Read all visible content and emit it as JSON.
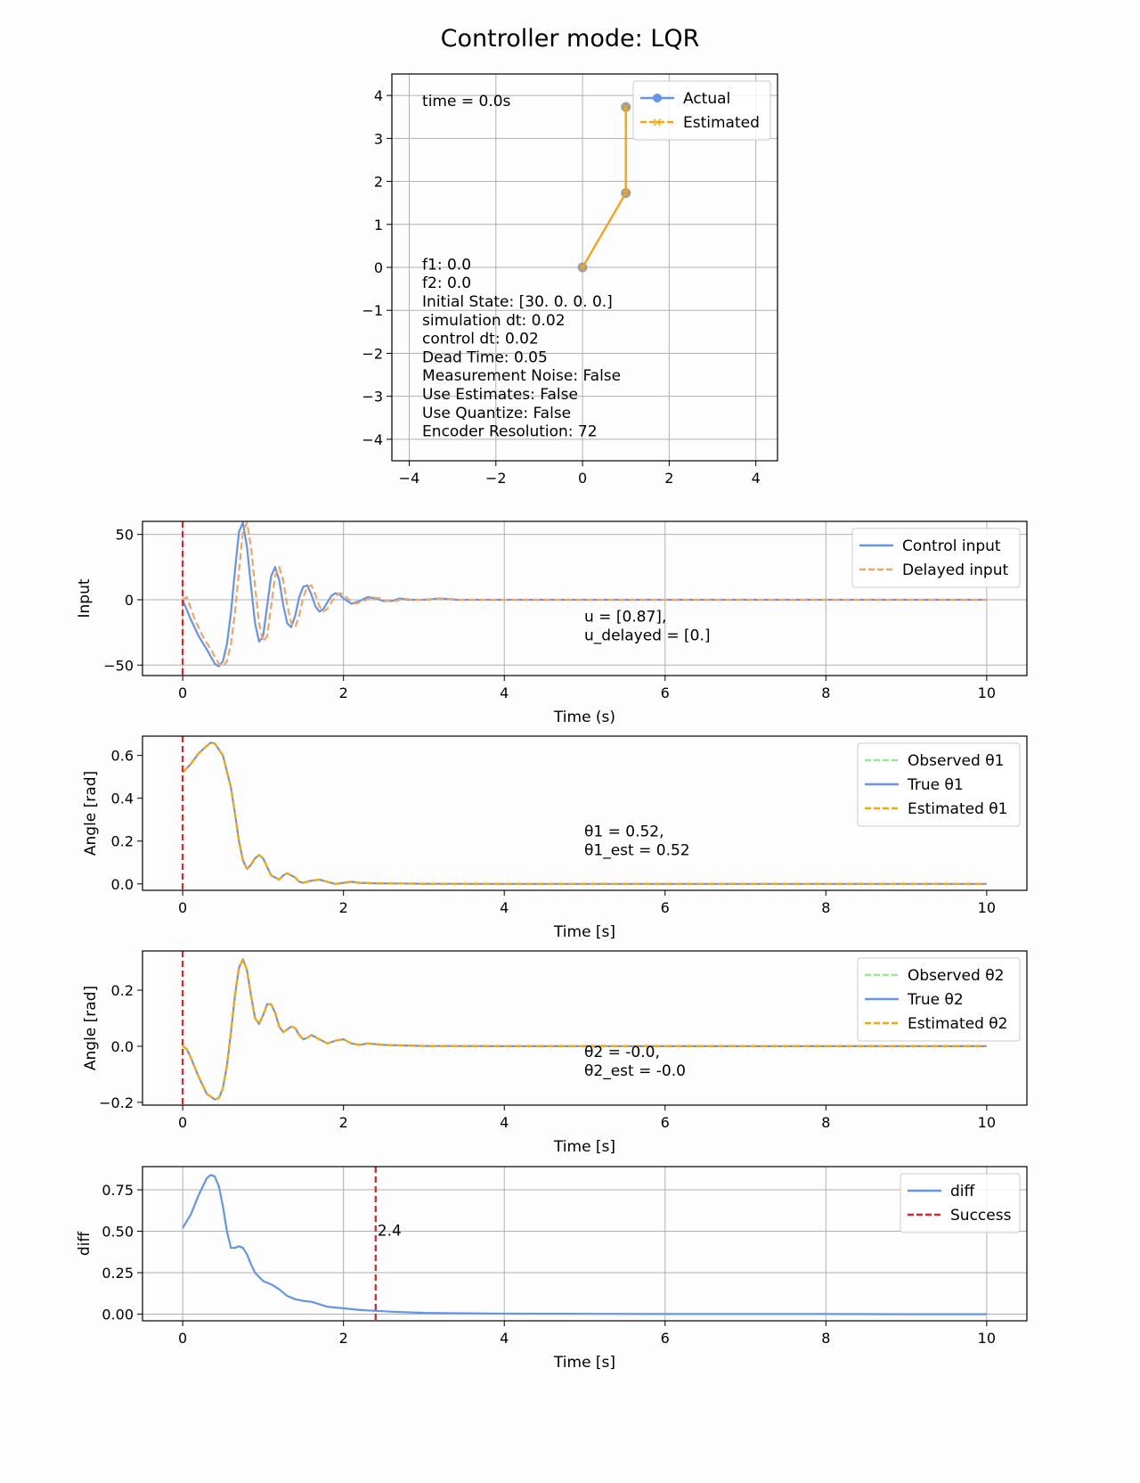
{
  "title": "Controller mode: LQR",
  "chart_data": [
    {
      "type": "line",
      "id": "pendulum",
      "xlim": [
        -4.4,
        4.5
      ],
      "ylim": [
        -4.5,
        4.5
      ],
      "xticks": [
        -4,
        -2,
        0,
        2,
        4
      ],
      "yticks": [
        -4,
        -3,
        -2,
        -1,
        0,
        1,
        2,
        3,
        4
      ],
      "grid": true,
      "legend_position": "top-right",
      "time_text": "time = 0.0s",
      "info_lines": [
        "f1: 0.0",
        "f2: 0.0",
        "Initial State: [30.  0.  0.  0.]",
        "simulation dt: 0.02",
        "control dt: 0.02",
        "Dead Time: 0.05",
        "Measurement Noise: False",
        "Use Estimates: False",
        "Use Quantize: False",
        "Encoder Resolution: 72"
      ],
      "series": [
        {
          "name": "Actual",
          "color": "#6495ed",
          "x": [
            0,
            1.0,
            1.0
          ],
          "y": [
            0,
            1.73,
            3.73
          ]
        },
        {
          "name": "Estimated",
          "color": "#ffa500",
          "x": [
            0,
            1.0,
            1.0
          ],
          "y": [
            0,
            1.73,
            3.73
          ]
        }
      ]
    },
    {
      "type": "line",
      "id": "input",
      "xlabel": "Time (s)",
      "ylabel": "Input",
      "xlim": [
        -0.5,
        10.5
      ],
      "ylim": [
        -58,
        60
      ],
      "xticks": [
        0,
        2,
        4,
        6,
        8,
        10
      ],
      "yticks": [
        -50,
        0,
        50
      ],
      "grid": true,
      "legend_position": "top-right",
      "annotation": [
        "u = [0.87],",
        "u_delayed = [0.]"
      ],
      "vline": {
        "x": 0,
        "color": "#d62728"
      },
      "series": [
        {
          "name": "Control input",
          "color": "#6495ed",
          "x": [
            0,
            0.1,
            0.2,
            0.3,
            0.4,
            0.45,
            0.5,
            0.55,
            0.6,
            0.65,
            0.7,
            0.75,
            0.8,
            0.85,
            0.9,
            0.95,
            1.0,
            1.05,
            1.1,
            1.15,
            1.2,
            1.25,
            1.3,
            1.35,
            1.4,
            1.45,
            1.5,
            1.55,
            1.6,
            1.65,
            1.7,
            1.75,
            1.8,
            1.85,
            1.9,
            1.95,
            2.0,
            2.1,
            2.2,
            2.3,
            2.4,
            2.5,
            2.6,
            2.7,
            2.8,
            2.9,
            3.0,
            3.2,
            3.4,
            3.6,
            4,
            5,
            6,
            7,
            8,
            9,
            10
          ],
          "y": [
            0,
            -15,
            -28,
            -38,
            -49,
            -51,
            -47,
            -34,
            -10,
            22,
            52,
            59,
            40,
            10,
            -18,
            -32,
            -28,
            -5,
            18,
            25,
            15,
            -4,
            -18,
            -21,
            -12,
            2,
            10,
            11,
            4,
            -5,
            -9,
            -7,
            -2,
            3,
            5,
            4,
            1,
            -3,
            -1,
            2,
            1,
            -1,
            -1,
            1,
            0,
            0,
            0,
            1,
            0,
            0,
            0,
            0,
            0,
            0,
            0,
            0,
            0
          ]
        },
        {
          "name": "Delayed input",
          "color": "#f4a460",
          "x": [
            0,
            0.05,
            0.15,
            0.25,
            0.35,
            0.45,
            0.5,
            0.55,
            0.6,
            0.65,
            0.7,
            0.75,
            0.8,
            0.85,
            0.9,
            0.95,
            1.0,
            1.05,
            1.1,
            1.15,
            1.2,
            1.25,
            1.3,
            1.35,
            1.4,
            1.45,
            1.5,
            1.55,
            1.6,
            1.65,
            1.7,
            1.75,
            1.8,
            1.85,
            1.9,
            1.95,
            2.0,
            2.05,
            2.15,
            2.25,
            2.35,
            2.45,
            2.55,
            2.65,
            2.75,
            2.85,
            2.95,
            3.05,
            3.25,
            3.45,
            3.65,
            4,
            5,
            6,
            7,
            8,
            9,
            10
          ],
          "y": [
            0,
            2,
            -15,
            -28,
            -38,
            -49,
            -51,
            -47,
            -34,
            -10,
            22,
            52,
            59,
            40,
            10,
            -18,
            -32,
            -28,
            -5,
            18,
            25,
            15,
            -4,
            -18,
            -21,
            -12,
            2,
            10,
            11,
            4,
            -5,
            -9,
            -7,
            -2,
            3,
            5,
            4,
            1,
            -3,
            -1,
            2,
            1,
            -1,
            -1,
            1,
            0,
            0,
            0,
            1,
            0,
            0,
            0,
            0,
            0,
            0,
            0,
            0,
            0
          ]
        }
      ]
    },
    {
      "type": "line",
      "id": "theta1",
      "xlabel": "Time [s]",
      "ylabel": "Angle [rad]",
      "xlim": [
        -0.5,
        10.5
      ],
      "ylim": [
        -0.03,
        0.69
      ],
      "xticks": [
        0,
        2,
        4,
        6,
        8,
        10
      ],
      "yticks": [
        0.0,
        0.2,
        0.4,
        0.6
      ],
      "grid": false,
      "legend_position": "top-right",
      "annotation": [
        "θ1 = 0.52,",
        "θ1_est = 0.52"
      ],
      "vline": {
        "x": 0,
        "color": "#d62728"
      },
      "series": [
        {
          "name": "Observed θ1",
          "color": "#90ee90",
          "x": [
            0,
            0.1,
            0.2,
            0.3,
            0.35,
            0.4,
            0.5,
            0.6,
            0.65,
            0.7,
            0.75,
            0.8,
            0.85,
            0.9,
            0.95,
            1.0,
            1.05,
            1.1,
            1.2,
            1.25,
            1.3,
            1.35,
            1.4,
            1.45,
            1.5,
            1.6,
            1.7,
            1.8,
            1.9,
            2.0,
            2.1,
            2.2,
            2.4,
            2.6,
            3,
            4,
            5,
            6,
            7,
            8,
            9,
            10
          ],
          "y": [
            0.52,
            0.56,
            0.61,
            0.645,
            0.66,
            0.655,
            0.6,
            0.45,
            0.33,
            0.2,
            0.11,
            0.07,
            0.09,
            0.12,
            0.135,
            0.12,
            0.08,
            0.04,
            0.02,
            0.04,
            0.05,
            0.04,
            0.03,
            0.01,
            0.005,
            0.015,
            0.02,
            0.01,
            0.0,
            0.005,
            0.01,
            0.005,
            0.003,
            0.002,
            0.001,
            0,
            0,
            0,
            0,
            0,
            0,
            0
          ]
        },
        {
          "name": "True θ1",
          "color": "#6495ed",
          "x": [
            0,
            0.1,
            0.2,
            0.3,
            0.35,
            0.4,
            0.5,
            0.6,
            0.65,
            0.7,
            0.75,
            0.8,
            0.85,
            0.9,
            0.95,
            1.0,
            1.05,
            1.1,
            1.2,
            1.25,
            1.3,
            1.35,
            1.4,
            1.45,
            1.5,
            1.6,
            1.7,
            1.8,
            1.9,
            2.0,
            2.1,
            2.2,
            2.4,
            2.6,
            3,
            4,
            5,
            6,
            7,
            8,
            9,
            10
          ],
          "y": [
            0.52,
            0.56,
            0.61,
            0.645,
            0.66,
            0.655,
            0.6,
            0.45,
            0.33,
            0.2,
            0.11,
            0.07,
            0.09,
            0.12,
            0.135,
            0.12,
            0.08,
            0.04,
            0.02,
            0.04,
            0.05,
            0.04,
            0.03,
            0.01,
            0.005,
            0.015,
            0.02,
            0.01,
            0.0,
            0.005,
            0.01,
            0.005,
            0.003,
            0.002,
            0.001,
            0,
            0,
            0,
            0,
            0,
            0,
            0
          ]
        },
        {
          "name": "Estimated θ1",
          "color": "#ffa500",
          "x": [
            0,
            0.1,
            0.2,
            0.3,
            0.35,
            0.4,
            0.5,
            0.6,
            0.65,
            0.7,
            0.75,
            0.8,
            0.85,
            0.9,
            0.95,
            1.0,
            1.05,
            1.1,
            1.2,
            1.25,
            1.3,
            1.35,
            1.4,
            1.45,
            1.5,
            1.6,
            1.7,
            1.8,
            1.9,
            2.0,
            2.1,
            2.2,
            2.4,
            2.6,
            3,
            4,
            5,
            6,
            7,
            8,
            9,
            10
          ],
          "y": [
            0.52,
            0.56,
            0.61,
            0.645,
            0.66,
            0.655,
            0.6,
            0.45,
            0.33,
            0.2,
            0.11,
            0.07,
            0.09,
            0.12,
            0.135,
            0.12,
            0.08,
            0.04,
            0.02,
            0.04,
            0.05,
            0.04,
            0.03,
            0.01,
            0.005,
            0.015,
            0.02,
            0.01,
            0.0,
            0.005,
            0.01,
            0.005,
            0.003,
            0.002,
            0.001,
            0,
            0,
            0,
            0,
            0,
            0,
            0
          ]
        }
      ]
    },
    {
      "type": "line",
      "id": "theta2",
      "xlabel": "Time [s]",
      "ylabel": "Angle [rad]",
      "xlim": [
        -0.5,
        10.5
      ],
      "ylim": [
        -0.21,
        0.34
      ],
      "xticks": [
        0,
        2,
        4,
        6,
        8,
        10
      ],
      "yticks": [
        -0.2,
        0.0,
        0.2
      ],
      "grid": false,
      "legend_position": "top-right",
      "annotation": [
        "θ2 = -0.0,",
        "θ2_est = -0.0"
      ],
      "vline": {
        "x": 0,
        "color": "#d62728"
      },
      "series": [
        {
          "name": "Observed θ2",
          "color": "#90ee90",
          "x": [
            0,
            0.05,
            0.1,
            0.2,
            0.3,
            0.4,
            0.45,
            0.5,
            0.55,
            0.6,
            0.65,
            0.7,
            0.75,
            0.8,
            0.85,
            0.9,
            0.95,
            1.0,
            1.05,
            1.1,
            1.15,
            1.2,
            1.25,
            1.3,
            1.35,
            1.4,
            1.45,
            1.5,
            1.55,
            1.6,
            1.7,
            1.8,
            1.9,
            2.0,
            2.1,
            2.2,
            2.3,
            2.5,
            2.7,
            3,
            4,
            5,
            6,
            7,
            8,
            9,
            10
          ],
          "y": [
            0,
            -0.01,
            -0.04,
            -0.11,
            -0.17,
            -0.19,
            -0.185,
            -0.15,
            -0.07,
            0.05,
            0.18,
            0.28,
            0.31,
            0.27,
            0.18,
            0.1,
            0.08,
            0.11,
            0.15,
            0.15,
            0.12,
            0.07,
            0.05,
            0.06,
            0.07,
            0.065,
            0.04,
            0.025,
            0.03,
            0.04,
            0.025,
            0.01,
            0.02,
            0.025,
            0.01,
            0.005,
            0.01,
            0.005,
            0.003,
            0.001,
            0,
            0,
            0,
            0,
            0,
            0,
            0
          ]
        },
        {
          "name": "True θ2",
          "color": "#6495ed",
          "x": [
            0,
            0.05,
            0.1,
            0.2,
            0.3,
            0.4,
            0.45,
            0.5,
            0.55,
            0.6,
            0.65,
            0.7,
            0.75,
            0.8,
            0.85,
            0.9,
            0.95,
            1.0,
            1.05,
            1.1,
            1.15,
            1.2,
            1.25,
            1.3,
            1.35,
            1.4,
            1.45,
            1.5,
            1.55,
            1.6,
            1.7,
            1.8,
            1.9,
            2.0,
            2.1,
            2.2,
            2.3,
            2.5,
            2.7,
            3,
            4,
            5,
            6,
            7,
            8,
            9,
            10
          ],
          "y": [
            0,
            -0.01,
            -0.04,
            -0.11,
            -0.17,
            -0.19,
            -0.185,
            -0.15,
            -0.07,
            0.05,
            0.18,
            0.28,
            0.31,
            0.27,
            0.18,
            0.1,
            0.08,
            0.11,
            0.15,
            0.15,
            0.12,
            0.07,
            0.05,
            0.06,
            0.07,
            0.065,
            0.04,
            0.025,
            0.03,
            0.04,
            0.025,
            0.01,
            0.02,
            0.025,
            0.01,
            0.005,
            0.01,
            0.005,
            0.003,
            0.001,
            0,
            0,
            0,
            0,
            0,
            0,
            0
          ]
        },
        {
          "name": "Estimated θ2",
          "color": "#ffa500",
          "x": [
            0,
            0.05,
            0.1,
            0.2,
            0.3,
            0.4,
            0.45,
            0.5,
            0.55,
            0.6,
            0.65,
            0.7,
            0.75,
            0.8,
            0.85,
            0.9,
            0.95,
            1.0,
            1.05,
            1.1,
            1.15,
            1.2,
            1.25,
            1.3,
            1.35,
            1.4,
            1.45,
            1.5,
            1.55,
            1.6,
            1.7,
            1.8,
            1.9,
            2.0,
            2.1,
            2.2,
            2.3,
            2.5,
            2.7,
            3,
            4,
            5,
            6,
            7,
            8,
            9,
            10
          ],
          "y": [
            0,
            -0.01,
            -0.04,
            -0.11,
            -0.17,
            -0.19,
            -0.185,
            -0.15,
            -0.07,
            0.05,
            0.18,
            0.28,
            0.31,
            0.27,
            0.18,
            0.1,
            0.08,
            0.11,
            0.15,
            0.15,
            0.12,
            0.07,
            0.05,
            0.06,
            0.07,
            0.065,
            0.04,
            0.025,
            0.03,
            0.04,
            0.025,
            0.01,
            0.02,
            0.025,
            0.01,
            0.005,
            0.01,
            0.005,
            0.003,
            0.001,
            0,
            0,
            0,
            0,
            0,
            0,
            0
          ]
        }
      ]
    },
    {
      "type": "line",
      "id": "diff",
      "xlabel": "Time [s]",
      "ylabel": "diff",
      "xlim": [
        -0.5,
        10.5
      ],
      "ylim": [
        -0.04,
        0.89
      ],
      "xticks": [
        0,
        2,
        4,
        6,
        8,
        10
      ],
      "yticks": [
        0.0,
        0.25,
        0.5,
        0.75
      ],
      "grid": true,
      "legend_position": "top-right",
      "vline": {
        "x": 2.4,
        "color": "#d62728",
        "label": "2.4"
      },
      "series": [
        {
          "name": "diff",
          "color": "#6495ed",
          "x": [
            0,
            0.1,
            0.2,
            0.3,
            0.35,
            0.4,
            0.45,
            0.5,
            0.55,
            0.6,
            0.65,
            0.7,
            0.75,
            0.8,
            0.85,
            0.9,
            1.0,
            1.1,
            1.2,
            1.3,
            1.4,
            1.5,
            1.6,
            1.7,
            1.8,
            1.9,
            2.0,
            2.2,
            2.4,
            2.6,
            3,
            4,
            5,
            6,
            7,
            8,
            9,
            10
          ],
          "y": [
            0.52,
            0.6,
            0.72,
            0.82,
            0.84,
            0.83,
            0.77,
            0.65,
            0.5,
            0.4,
            0.4,
            0.41,
            0.4,
            0.36,
            0.3,
            0.25,
            0.2,
            0.18,
            0.15,
            0.11,
            0.09,
            0.08,
            0.075,
            0.06,
            0.045,
            0.04,
            0.035,
            0.025,
            0.02,
            0.015,
            0.008,
            0.003,
            0.002,
            0.001,
            0.001,
            0.001,
            0,
            0
          ]
        },
        {
          "name": "Success",
          "color": "#d62728",
          "x": [
            2.4,
            2.4
          ],
          "y": [
            -0.04,
            0.89
          ]
        }
      ]
    }
  ]
}
